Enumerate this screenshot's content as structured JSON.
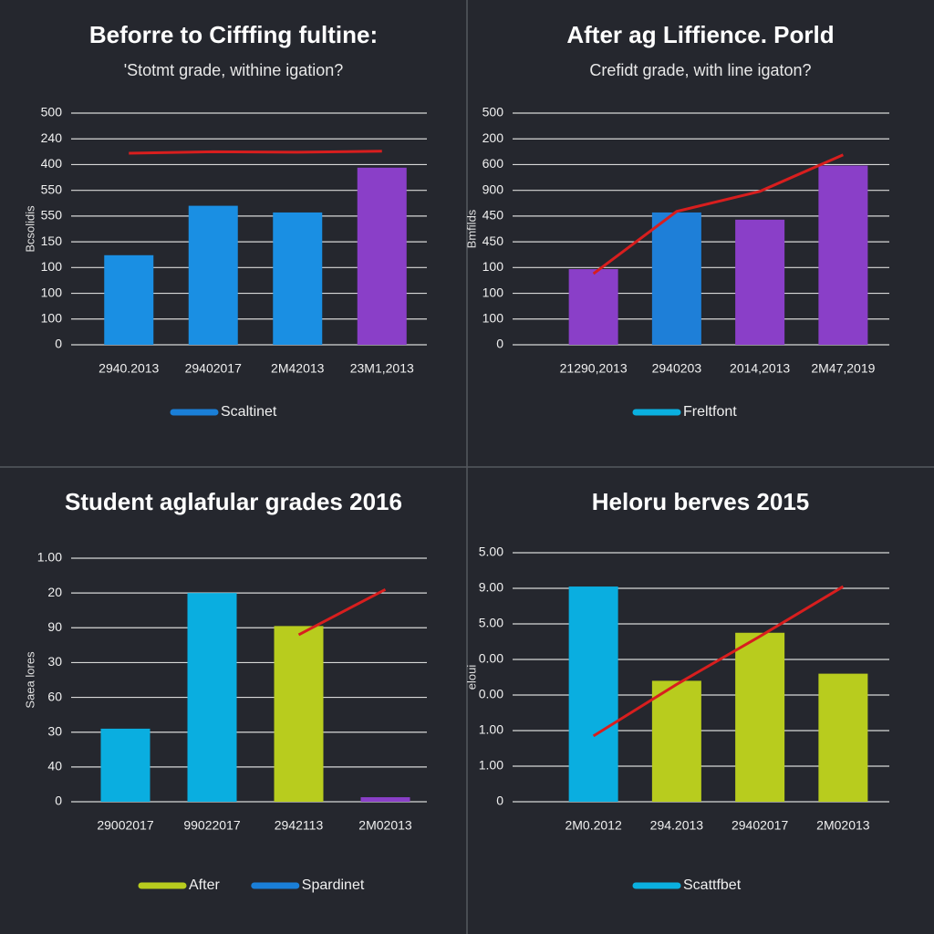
{
  "chart_data": [
    {
      "type": "bar",
      "title": "Beforre to Cifffing fultine:",
      "subtitle": "'Stotmt grade, withine igation?",
      "y_label": "Bcsolidis",
      "categories": [
        "2940.2013",
        "29402017",
        "2M42013",
        "23M1,2013"
      ],
      "values": [
        174,
        270,
        257,
        344
      ],
      "bar_colors": [
        "#1a8fe3",
        "#1a8fe3",
        "#1a8fe3",
        "#8a3fc8"
      ],
      "line": {
        "color": "#d81e1e",
        "values": [
          372,
          375,
          374,
          376
        ]
      },
      "legend": [
        {
          "name": "Scaltinet",
          "color": "#1a7fd8"
        }
      ],
      "ylim": [
        0,
        450
      ],
      "yticks": [
        0,
        {
          "value": 50,
          "label": "100"
        },
        100,
        {
          "value": 150,
          "label": "100"
        },
        {
          "value": 200,
          "label": "150"
        },
        {
          "value": 250,
          "label": "550"
        },
        {
          "value": 300,
          "label": "550"
        },
        {
          "value": 350,
          "label": "400"
        },
        {
          "value": 400,
          "label": "240"
        },
        {
          "value": 450,
          "label": "500"
        }
      ]
    },
    {
      "type": "bar",
      "title": "After ag Liffience. Porld",
      "subtitle": "Crefidt grade, with line igaton?",
      "y_label": "Bmfilds",
      "categories": [
        "21290,2013",
        "2940203",
        "2014,2013",
        "2M47,2019"
      ],
      "values": [
        147,
        257,
        243,
        348
      ],
      "bar_colors": [
        "#8a3fc8",
        "#1e7fd8",
        "#8a3fc8",
        "#8a3fc8"
      ],
      "line": {
        "color": "#d81e1e",
        "values": [
          138,
          259,
          298,
          369
        ]
      },
      "legend": [
        {
          "name": "Freltfont",
          "color": "#0ab0e0"
        }
      ],
      "ylim": [
        0,
        450
      ],
      "yticks": [
        0,
        {
          "value": 50,
          "label": "100"
        },
        100,
        {
          "value": 150,
          "label": "100"
        },
        {
          "value": 200,
          "label": "450"
        },
        {
          "value": 250,
          "label": "450"
        },
        {
          "value": 300,
          "label": "900"
        },
        {
          "value": 350,
          "label": "600"
        },
        {
          "value": 400,
          "label": "200"
        },
        {
          "value": 450,
          "label": "500"
        }
      ]
    },
    {
      "type": "bar",
      "title": "Student aglafular grades 2016",
      "y_label": "Saea lores",
      "categories": [
        "29002017",
        "99022017",
        "2942113",
        "2M02013"
      ],
      "values": [
        21,
        60,
        50.5,
        1.3
      ],
      "bar_colors": [
        "#0aaee0",
        "#0aaee0",
        "#b8cc1e",
        "#8a3fc8"
      ],
      "line": {
        "color": "#d81e1e",
        "values": [
          null,
          null,
          48,
          61
        ]
      },
      "legend": [
        {
          "name": "After",
          "color": "#b8cc1e"
        },
        {
          "name": "Spardinet",
          "color": "#1a7fd8"
        }
      ],
      "ylim": [
        0,
        70
      ],
      "yticks": [
        0,
        {
          "value": 10,
          "label": "40"
        },
        {
          "value": 20,
          "label": "30"
        },
        {
          "value": 30,
          "label": "60"
        },
        {
          "value": 40,
          "label": "30"
        },
        {
          "value": 50,
          "label": "90"
        },
        {
          "value": 60,
          "label": "20"
        },
        {
          "value": 70,
          "label": "1.00"
        }
      ]
    },
    {
      "type": "bar",
      "title": "Heloru berves 2015",
      "y_label": "eloui",
      "categories": [
        "2M0.2012",
        "294.2013",
        "29402017",
        "2M02013"
      ],
      "values": [
        6.05,
        3.4,
        4.75,
        3.6
      ],
      "bar_colors": [
        "#0aaee0",
        "#b8cc1e",
        "#b8cc1e",
        "#b8cc1e"
      ],
      "line": {
        "color": "#d81e1e",
        "values": [
          1.85,
          3.3,
          4.65,
          6.05
        ]
      },
      "legend": [
        {
          "name": "Scattfbet",
          "color": "#0ab0e0"
        }
      ],
      "ylim": [
        0,
        7
      ],
      "yticks": [
        0,
        {
          "value": 1,
          "label": "1.00"
        },
        {
          "value": 2,
          "label": "1.00"
        },
        {
          "value": 3,
          "label": "0.00"
        },
        {
          "value": 4,
          "label": "0.00"
        },
        {
          "value": 5,
          "label": "5.00"
        },
        {
          "value": 6,
          "label": "9.00"
        },
        {
          "value": 7,
          "label": "5.00"
        }
      ]
    }
  ]
}
